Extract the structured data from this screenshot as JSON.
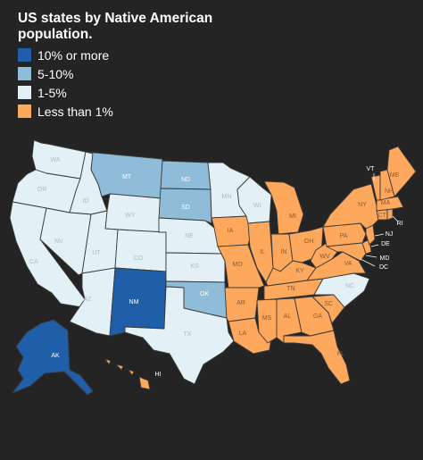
{
  "title": "US states by Native American population.",
  "legend": [
    {
      "label": "10% or more",
      "color": "#1f5faa"
    },
    {
      "label": "5-10%",
      "color": "#8fbcd8"
    },
    {
      "label": "1-5%",
      "color": "#e3f0f6"
    },
    {
      "label": "Less than 1%",
      "color": "#fda85d"
    }
  ],
  "states": {
    "WA": "WA",
    "OR": "OR",
    "CA": "CA",
    "ID": "ID",
    "NV": "NV",
    "MT": "MT",
    "WY": "WY",
    "UT": "UT",
    "AZ": "AZ",
    "CO": "CO",
    "NM": "NM",
    "ND": "ND",
    "SD": "SD",
    "NE": "NE",
    "KS": "KS",
    "OK": "OK",
    "TX": "TX",
    "MN": "MN",
    "IA": "IA",
    "MO": "MO",
    "AR": "AR",
    "LA": "LA",
    "WI": "WI",
    "IL": "IL",
    "MI": "MI",
    "IN": "IN",
    "KY": "KY",
    "TN": "TN",
    "MS": "MS",
    "AL": "AL",
    "OH": "OH",
    "WV": "WV",
    "VA": "VA",
    "NC": "NC",
    "SC": "SC",
    "GA": "GA",
    "FL": "FL",
    "PA": "PA",
    "NY": "NY",
    "VT": "VT",
    "ME": "ME",
    "NH": "NH",
    "MA": "MA",
    "RI": "RI",
    "CT": "CT",
    "NJ": "NJ",
    "DE": "DE",
    "MD": "MD",
    "DC": "DC",
    "AK": "AK",
    "HI": "HI"
  }
}
